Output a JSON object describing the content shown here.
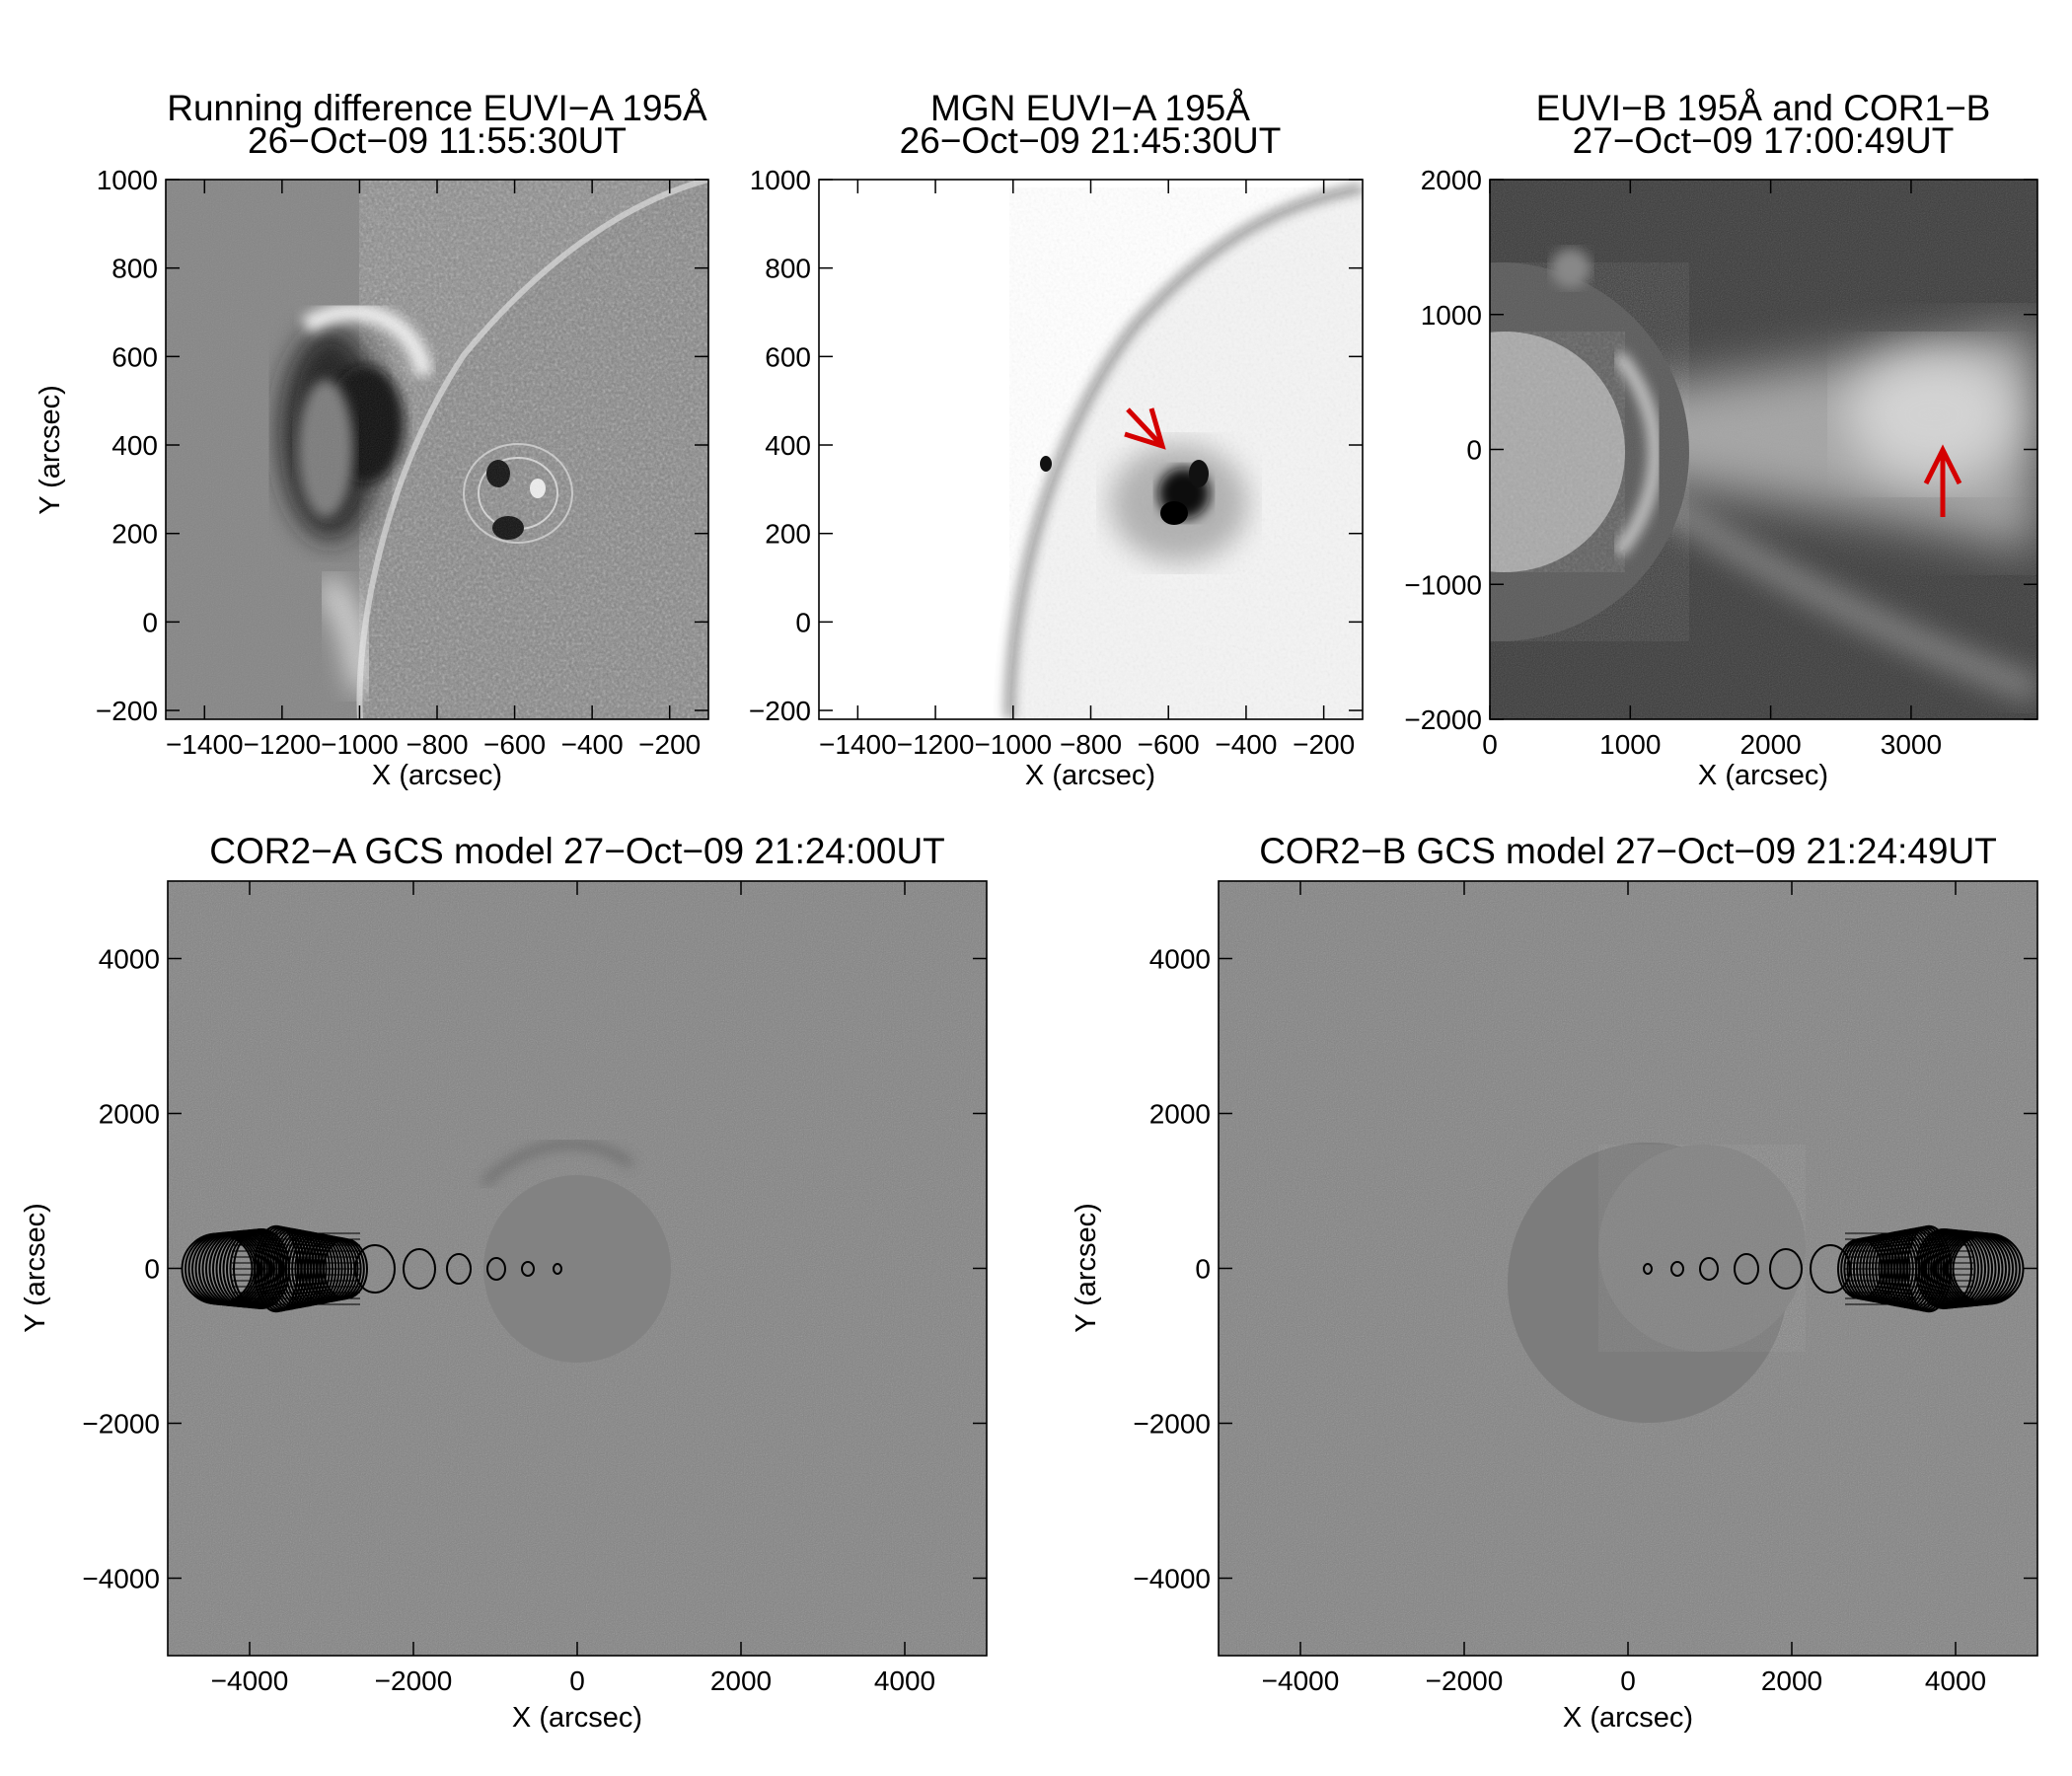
{
  "panels": [
    {
      "id": "euvi-a-diff",
      "title_line1": "Running difference EUVI−A 195Å",
      "title_line2": "26−Oct−09 11:55:30UT",
      "xlabel": "X (arcsec)",
      "ylabel": "Y (arcsec)",
      "xlim": [
        -1500,
        -100
      ],
      "ylim": [
        -220,
        1000
      ],
      "xticks": [
        -1400,
        -1200,
        -1000,
        -800,
        -600,
        -400,
        -200
      ],
      "yticks": [
        1000,
        800,
        600,
        400,
        200,
        0,
        -200
      ],
      "xtick_labels": [
        "−1400",
        "−1200",
        "−1000",
        "−800",
        "−600",
        "−400",
        "−200"
      ],
      "ytick_labels": [
        "1000",
        "800",
        "600",
        "400",
        "200",
        "0",
        "−200"
      ]
    },
    {
      "id": "mgn-euvi-a",
      "title_line1": "MGN EUVI−A 195Å",
      "title_line2": "26−Oct−09 21:45:30UT",
      "xlabel": "X (arcsec)",
      "xlim": [
        -1500,
        -100
      ],
      "ylim": [
        -220,
        1000
      ],
      "xticks": [
        -1400,
        -1200,
        -1000,
        -800,
        -600,
        -400,
        -200
      ],
      "yticks": [
        1000,
        800,
        600,
        400,
        200,
        0,
        -200
      ],
      "xtick_labels": [
        "−1400",
        "−1200",
        "−1000",
        "−800",
        "−600",
        "−400",
        "−200"
      ],
      "ytick_labels": [
        "1000",
        "800",
        "600",
        "400",
        "200",
        "0",
        "−200"
      ]
    },
    {
      "id": "euvi-b-cor1-b",
      "title_line1": "EUVI−B 195Å and COR1−B",
      "title_line2": "27−Oct−09 17:00:49UT",
      "xlabel": "X (arcsec)",
      "xlim": [
        0,
        3900
      ],
      "ylim": [
        -2000,
        2000
      ],
      "xticks": [
        0,
        1000,
        2000,
        3000
      ],
      "yticks": [
        2000,
        1000,
        0,
        -1000,
        -2000
      ],
      "xtick_labels": [
        "0",
        "1000",
        "2000",
        "3000"
      ],
      "ytick_labels": [
        "2000",
        "1000",
        "0",
        "−1000",
        "−2000"
      ]
    },
    {
      "id": "cor2-a-gcs",
      "title_line1": "COR2−A GCS model 27−Oct−09 21:24:00UT",
      "xlabel": "X (arcsec)",
      "ylabel": "Y (arcsec)",
      "xlim": [
        -5000,
        5000
      ],
      "ylim": [
        -5000,
        5000
      ],
      "xticks": [
        -4000,
        -2000,
        0,
        2000,
        4000
      ],
      "yticks": [
        4000,
        2000,
        0,
        -2000,
        -4000
      ],
      "xtick_labels": [
        "−4000",
        "−2000",
        "0",
        "2000",
        "4000"
      ],
      "ytick_labels": [
        "4000",
        "2000",
        "0",
        "−2000",
        "−4000"
      ]
    },
    {
      "id": "cor2-b-gcs",
      "title_line1": "COR2−B GCS model 27−Oct−09 21:24:49UT",
      "xlabel": "X (arcsec)",
      "ylabel": "Y (arcsec)",
      "xlim": [
        -5000,
        5000
      ],
      "ylim": [
        -5000,
        5000
      ],
      "xticks": [
        -4000,
        -2000,
        0,
        2000,
        4000
      ],
      "yticks": [
        4000,
        2000,
        0,
        -2000,
        -4000
      ],
      "xtick_labels": [
        "−4000",
        "−2000",
        "0",
        "2000",
        "4000"
      ],
      "ytick_labels": [
        "4000",
        "2000",
        "0",
        "−2000",
        "−4000"
      ]
    }
  ],
  "colors": {
    "arrow": "#d40000",
    "background_gray": "#838383"
  }
}
